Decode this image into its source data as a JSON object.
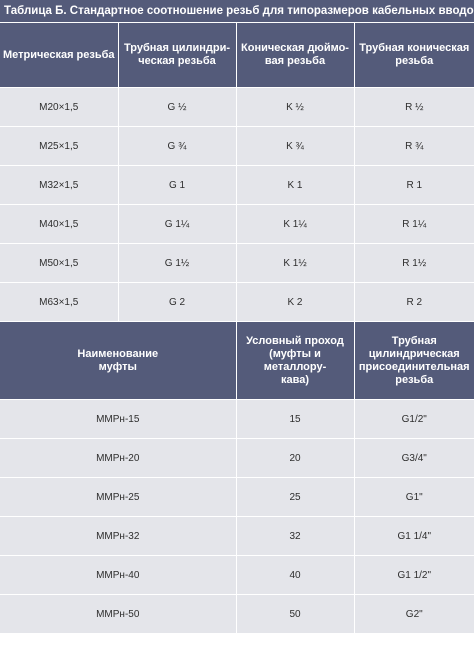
{
  "title": "Таблица Б.  Стандартное соотношение резьб для типоразмеров кабельных вводов",
  "colors": {
    "header_bg": "#545b7a",
    "cell_bg": "#e4e5ea",
    "divider": "#ffffff"
  },
  "thread_table": {
    "headers": [
      "Метрическая резьба",
      "Трубная цилиндри-\nческая резьба",
      "Коническая дюймо-\nвая резьба",
      "Трубная коническая\nрезьба"
    ],
    "rows": [
      [
        "M20×1,5",
        "G ½",
        "K ½",
        "R ½"
      ],
      [
        "M25×1,5",
        "G ¾",
        "K ¾",
        "R ¾"
      ],
      [
        "M32×1,5",
        "G 1",
        "K 1",
        "R 1"
      ],
      [
        "M40×1,5",
        "G 1¼",
        "K 1¼",
        "R 1¼"
      ],
      [
        "M50×1,5",
        "G 1½",
        "K 1½",
        "R 1½"
      ],
      [
        "M63×1,5",
        "G 2",
        "K 2",
        "R 2"
      ]
    ]
  },
  "coupling_table": {
    "headers": [
      "Наименование\nмуфты",
      "Условный проход\n(муфты и металлору-\nкава)",
      "Трубная\nцилиндрическая\nприсоединительная\nрезьба"
    ],
    "rows": [
      [
        "ММРн-15",
        "15",
        "G1/2\""
      ],
      [
        "ММРн-20",
        "20",
        "G3/4\""
      ],
      [
        "ММРн-25",
        "25",
        "G1\""
      ],
      [
        "ММРн-32",
        "32",
        "G1 1/4\""
      ],
      [
        "ММРн-40",
        "40",
        "G1 1/2\""
      ],
      [
        "ММРн-50",
        "50",
        "G2\""
      ]
    ]
  }
}
